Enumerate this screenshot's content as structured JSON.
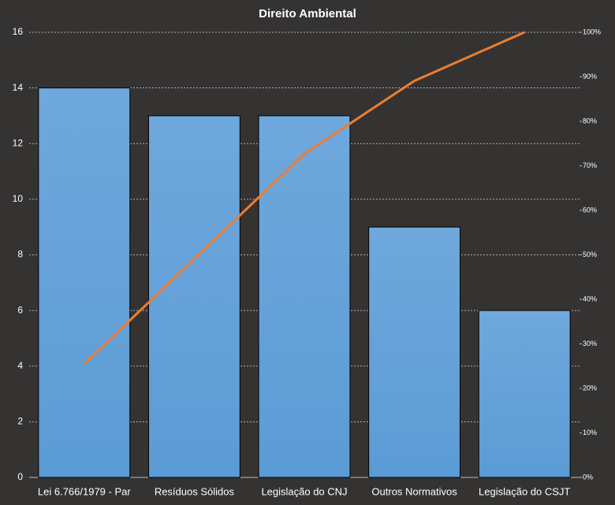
{
  "chart_data": {
    "type": "pareto",
    "title": "Direito Ambiental",
    "categories": [
      "Lei 6.766/1979 - Par",
      "Resíduos Sólidos",
      "Legislação do CNJ",
      "Outros Normativos",
      "Legislação do CSJT"
    ],
    "series": [
      {
        "type": "bar",
        "color": "#5b9bd5",
        "values": [
          14,
          13,
          13,
          9,
          6
        ]
      },
      {
        "type": "line",
        "axis": "y2",
        "color": "#ed7d31",
        "values": [
          25.5,
          49.1,
          72.7,
          89.1,
          100
        ]
      }
    ],
    "ylim": [
      0,
      16
    ],
    "yticks": [
      0,
      2,
      4,
      6,
      8,
      10,
      12,
      14,
      16
    ],
    "y2lim": [
      0,
      100
    ],
    "y2ticks": [
      {
        "value": 0,
        "label": "0%"
      },
      {
        "value": 10,
        "label": "10%"
      },
      {
        "value": 20,
        "label": "20%"
      },
      {
        "value": 30,
        "label": "30%"
      },
      {
        "value": 40,
        "label": "40%"
      },
      {
        "value": 50,
        "label": "50%"
      },
      {
        "value": 60,
        "label": "60%"
      },
      {
        "value": 70,
        "label": "70%"
      },
      {
        "value": 80,
        "label": "80%"
      },
      {
        "value": 90,
        "label": "90%"
      },
      {
        "value": 100,
        "label": "100%"
      }
    ],
    "grid": true
  }
}
